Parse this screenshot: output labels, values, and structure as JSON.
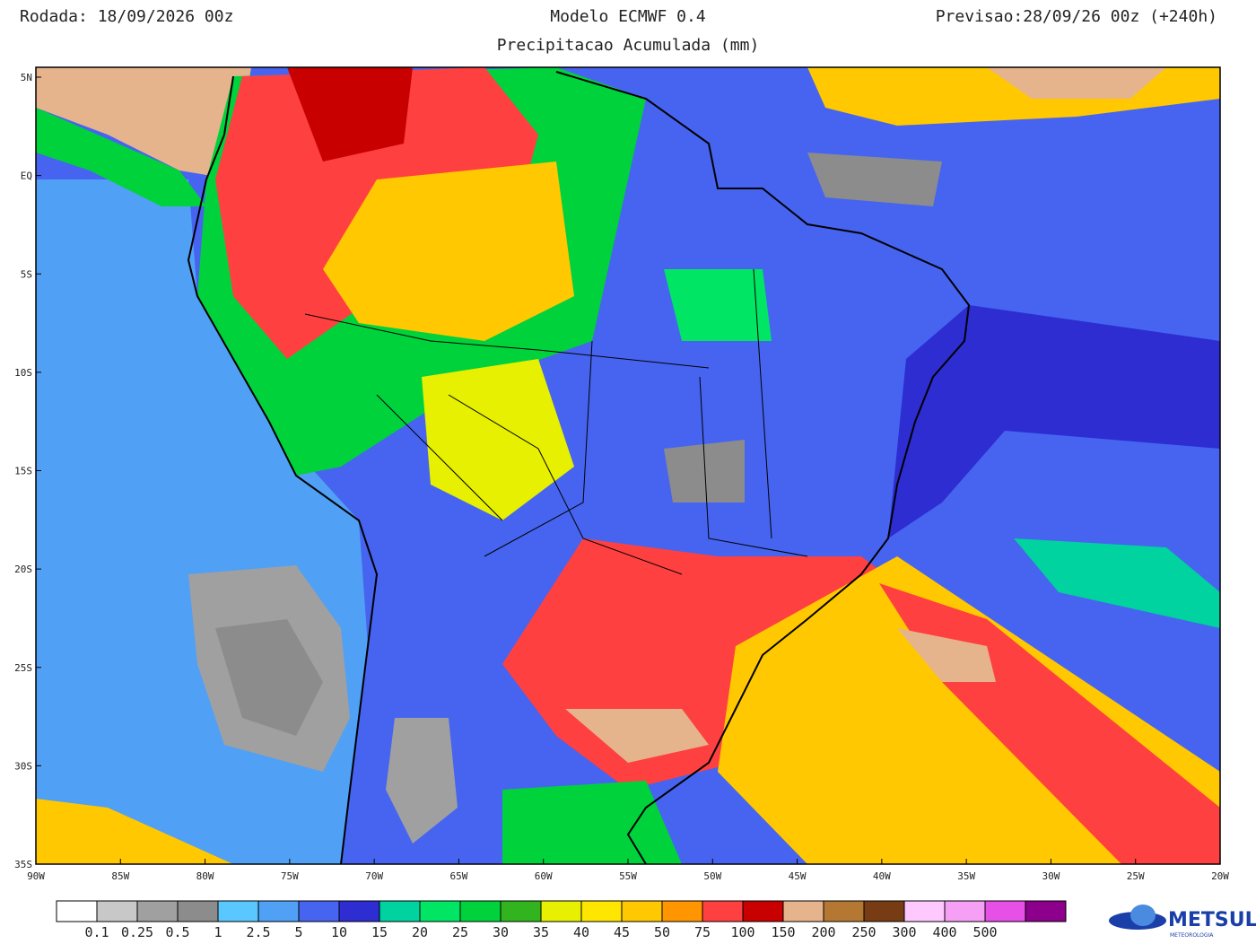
{
  "header": {
    "run": "Rodada: 18/09/2026 00z",
    "model": "Modelo ECMWF 0.4",
    "forecast": "Previsao:28/09/26 00z (+240h)",
    "subtitle": "Precipitacao Acumulada (mm)"
  },
  "map": {
    "lat_labels": [
      "5N",
      "EQ",
      "5S",
      "10S",
      "15S",
      "20S",
      "25S",
      "30S",
      "35S"
    ],
    "lon_labels": [
      "90W",
      "85W",
      "80W",
      "75W",
      "70W",
      "65W",
      "60W",
      "55W",
      "50W",
      "45W",
      "40W",
      "35W",
      "30W",
      "25W",
      "20W"
    ]
  },
  "legend": {
    "colors": [
      "#ffffff",
      "#c8c8c8",
      "#a0a0a0",
      "#8c8c8c",
      "#5ac8ff",
      "#50a0f5",
      "#4664f0",
      "#2d2dd2",
      "#00d2a0",
      "#00e664",
      "#00d23c",
      "#32b41e",
      "#e6f000",
      "#ffe600",
      "#ffc800",
      "#ff9600",
      "#ff4040",
      "#c80000",
      "#e6b48c",
      "#b47832",
      "#783c14",
      "#ffc8ff",
      "#f5a0f5",
      "#e650e6",
      "#8c008c"
    ],
    "labels": [
      "0.1",
      "0.25",
      "0.5",
      "1",
      "2.5",
      "5",
      "10",
      "15",
      "20",
      "25",
      "30",
      "35",
      "40",
      "45",
      "50",
      "75",
      "100",
      "150",
      "200",
      "250",
      "300",
      "400",
      "500"
    ]
  },
  "logo": {
    "name": "METSUL",
    "tagline": "METEOROLOGIA"
  }
}
